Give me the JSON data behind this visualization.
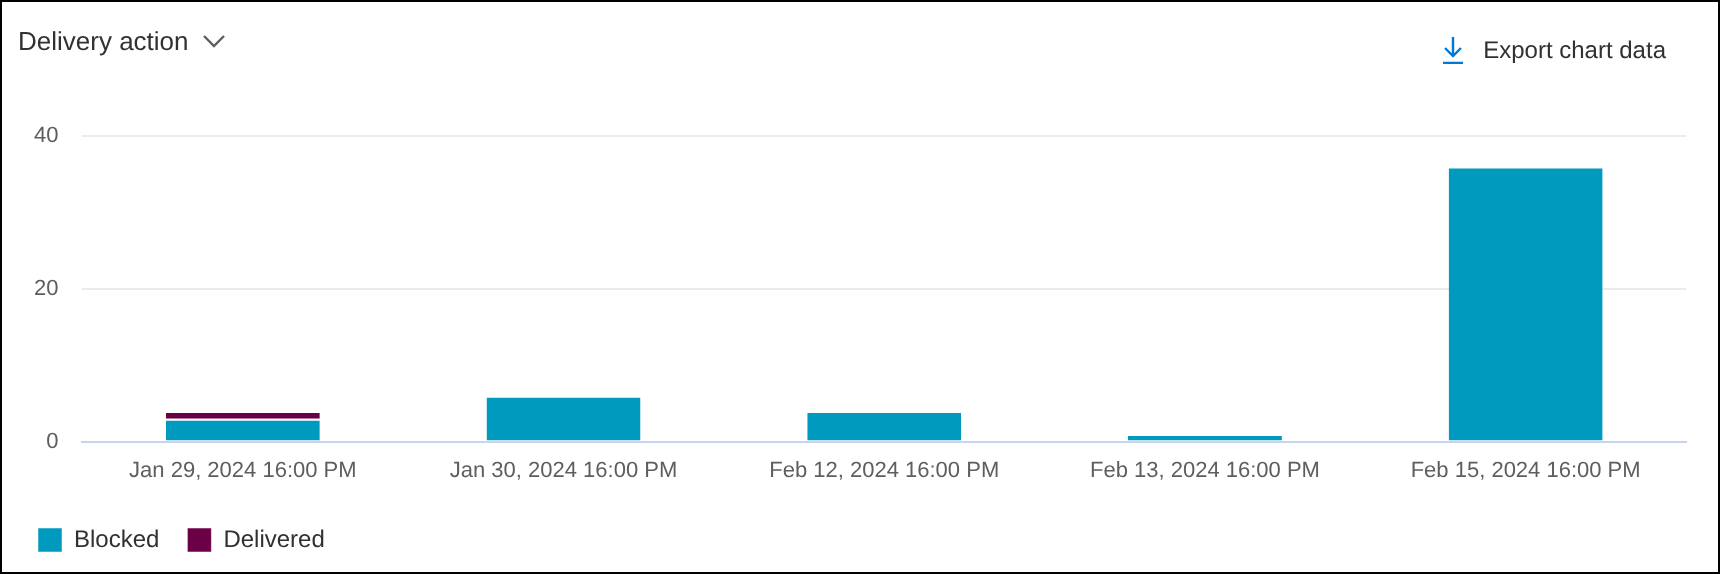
{
  "chart_data": {
    "type": "bar",
    "title": "Delivery action",
    "annotations": [
      "Export chart data"
    ],
    "categories": [
      "Jan 29, 2024 16:00 PM",
      "Jan 30, 2024 16:00 PM",
      "Feb 12, 2024 16:00 PM",
      "Feb 13, 2024 16:00 PM",
      "Feb 15, 2024 16:00 PM"
    ],
    "series": [
      {
        "name": "Blocked",
        "color": "#009abf",
        "values": [
          3,
          6,
          4,
          1,
          36
        ]
      },
      {
        "name": "Delivered",
        "color": "#6b0046",
        "values": [
          1,
          null,
          null,
          null,
          null
        ]
      }
    ],
    "stacked": true,
    "ylim": [
      0,
      40
    ],
    "yticks": [
      0,
      20,
      40
    ],
    "grid": "y",
    "legend": "bottom left"
  }
}
